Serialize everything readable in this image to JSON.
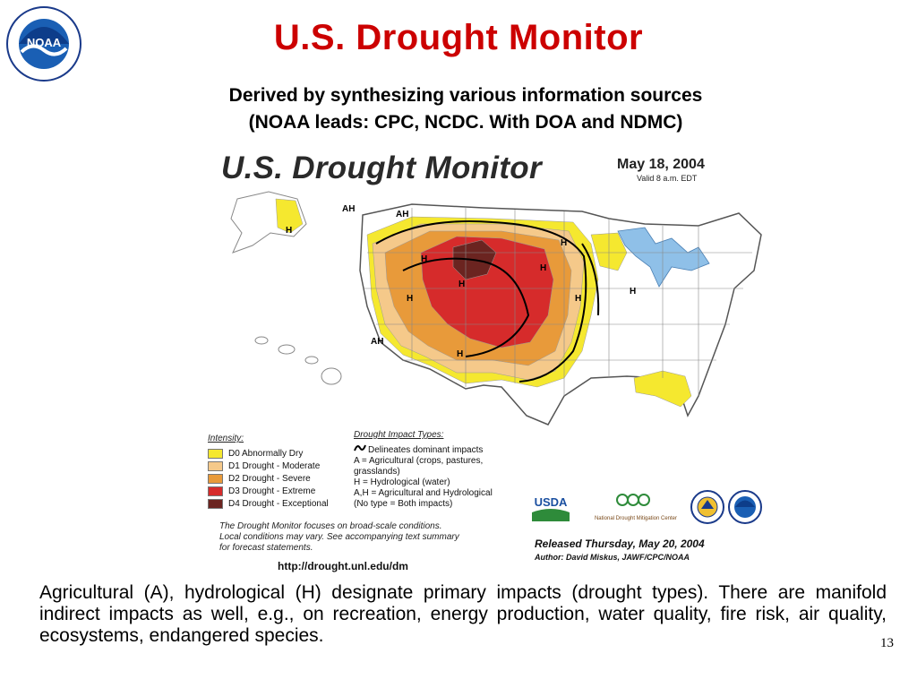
{
  "slide": {
    "title": "U.S. Drought Monitor",
    "subtitle_line1": "Derived by synthesizing various information sources",
    "subtitle_line2": "(NOAA leads: CPC, NCDC. With DOA and NDMC)",
    "logo_text": "NOAA",
    "body_text": "Agricultural (A), hydrological (H) designate primary impacts (drought types). There are manifold indirect impacts as well, e.g., on recreation, energy production, water quality, fire risk, air quality, ecosystems, endangered species.",
    "page_number": "13"
  },
  "map": {
    "title": "U.S. Drought Monitor",
    "date": "May 18, 2004",
    "valid": "Valid 8 a.m. EDT",
    "labels": {
      "ah1": "AH",
      "ah2": "AH",
      "ah3": "AH",
      "h_alaska": "H",
      "h1": "H",
      "h2": "H",
      "h3": "H",
      "h4": "H",
      "h5": "H",
      "h6": "H",
      "h7": "H",
      "h8": "H"
    },
    "intensity_heading": "Intensity:",
    "intensity": [
      {
        "label": "D0 Abnormally Dry",
        "color": "#f5e82f"
      },
      {
        "label": "D1 Drought - Moderate",
        "color": "#f5c98a"
      },
      {
        "label": "D2 Drought - Severe",
        "color": "#e89a3a"
      },
      {
        "label": "D3 Drought - Extreme",
        "color": "#d62b2b"
      },
      {
        "label": "D4 Drought - Exceptional",
        "color": "#6b2420"
      }
    ],
    "impact_heading": "Drought Impact Types:",
    "impact_lines": [
      "Delineates dominant impacts",
      "A = Agricultural (crops, pastures,",
      "grasslands)",
      "H = Hydrological (water)",
      "A,H = Agricultural and Hydrological",
      "(No type = Both impacts)"
    ],
    "note_lines": [
      "The Drought Monitor focuses on broad-scale conditions.",
      "Local conditions may vary.  See accompanying text summary",
      "for forecast statements."
    ],
    "url": "http://drought.unl.edu/dm",
    "usda_text": "USDA",
    "ndmc_text": "National Drought Mitigation Center",
    "released": "Released Thursday, May 20, 2004",
    "author": "Author: David Miskus, JAWF/CPC/NOAA"
  }
}
